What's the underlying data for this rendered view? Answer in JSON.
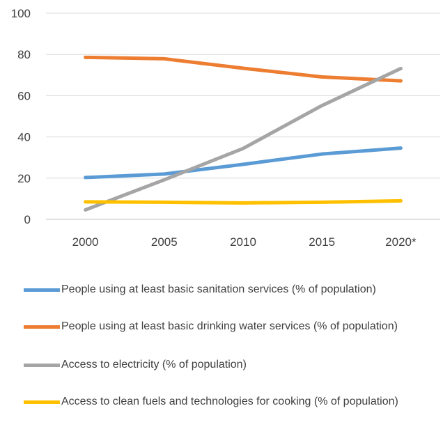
{
  "chart_data": {
    "type": "line",
    "title": "",
    "xlabel": "",
    "ylabel": "",
    "categories": [
      "2000",
      "2005",
      "2010",
      "2015",
      "2020*"
    ],
    "yticks": [
      "0",
      "20",
      "40",
      "60",
      "80",
      "100"
    ],
    "ylim": [
      0,
      100
    ],
    "grid": true,
    "legend_position": "bottom",
    "series": [
      {
        "name": "People using at least basic sanitation services (% of population)",
        "color": "#5b9bd5",
        "values": [
          20.3,
          22,
          26.7,
          31.7,
          34.6
        ]
      },
      {
        "name": "People using at least basic drinking water services (% of population)",
        "color": "#ed7d31",
        "values": [
          78.6,
          77.9,
          73.3,
          69.1,
          67.2
        ]
      },
      {
        "name": "Access to electricity (% of population)",
        "color": "#a5a5a5",
        "values": [
          4.6,
          19.2,
          34.4,
          55.2,
          73.2
        ]
      },
      {
        "name": "Access to clean fuels and technologies for cooking (% of population)",
        "color": "#ffc000",
        "values": [
          8.5,
          8.3,
          8.0,
          8.3,
          9.0
        ]
      }
    ]
  }
}
